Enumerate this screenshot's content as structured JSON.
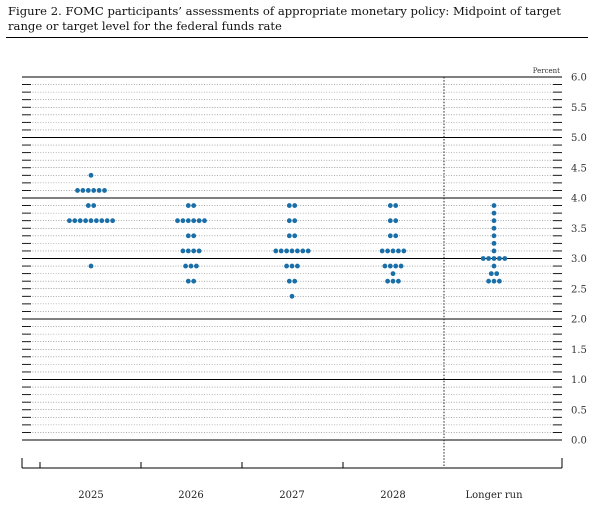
{
  "title": "Figure 2. FOMC participants’ assessments of appropriate monetary policy: Midpoint of target range or target level for the federal funds rate",
  "chart_data": {
    "type": "scatter",
    "subtype": "dot-plot",
    "title": "Figure 2. FOMC participants’ assessments of appropriate monetary policy: Midpoint of target range or target level for the federal funds rate",
    "unit_label": "Percent",
    "categories": [
      "2025",
      "2026",
      "2027",
      "2028",
      "Longer run"
    ],
    "ylim": [
      0.0,
      6.0
    ],
    "yticks": [
      "6.0",
      "5.5",
      "5.0",
      "4.5",
      "4.0",
      "3.5",
      "3.0",
      "2.5",
      "2.0",
      "1.5",
      "1.0",
      "0.5",
      "0.0"
    ],
    "grid": true,
    "dot_color": "#1a6fa8",
    "dots": [
      {
        "category": "2025",
        "values": [
          {
            "y": 4.375,
            "count": 1
          },
          {
            "y": 4.125,
            "count": 6
          },
          {
            "y": 3.875,
            "count": 2
          },
          {
            "y": 3.625,
            "count": 9
          },
          {
            "y": 2.875,
            "count": 1
          }
        ]
      },
      {
        "category": "2026",
        "values": [
          {
            "y": 3.875,
            "count": 2
          },
          {
            "y": 3.625,
            "count": 6
          },
          {
            "y": 3.375,
            "count": 2
          },
          {
            "y": 3.125,
            "count": 4
          },
          {
            "y": 2.875,
            "count": 3
          },
          {
            "y": 2.625,
            "count": 2
          }
        ]
      },
      {
        "category": "2027",
        "values": [
          {
            "y": 3.875,
            "count": 2
          },
          {
            "y": 3.625,
            "count": 2
          },
          {
            "y": 3.375,
            "count": 2
          },
          {
            "y": 3.125,
            "count": 7
          },
          {
            "y": 2.875,
            "count": 3
          },
          {
            "y": 2.625,
            "count": 2
          },
          {
            "y": 2.375,
            "count": 1
          }
        ]
      },
      {
        "category": "2028",
        "values": [
          {
            "y": 3.875,
            "count": 2
          },
          {
            "y": 3.625,
            "count": 2
          },
          {
            "y": 3.375,
            "count": 2
          },
          {
            "y": 3.125,
            "count": 5
          },
          {
            "y": 2.875,
            "count": 4
          },
          {
            "y": 2.75,
            "count": 1
          },
          {
            "y": 2.625,
            "count": 3
          }
        ]
      },
      {
        "category": "Longer run",
        "values": [
          {
            "y": 3.875,
            "count": 1
          },
          {
            "y": 3.75,
            "count": 1
          },
          {
            "y": 3.625,
            "count": 1
          },
          {
            "y": 3.5,
            "count": 1
          },
          {
            "y": 3.375,
            "count": 1
          },
          {
            "y": 3.25,
            "count": 1
          },
          {
            "y": 3.125,
            "count": 1
          },
          {
            "y": 3.0,
            "count": 5
          },
          {
            "y": 2.875,
            "count": 1
          },
          {
            "y": 2.75,
            "count": 2
          },
          {
            "y": 2.625,
            "count": 3
          }
        ]
      }
    ]
  }
}
